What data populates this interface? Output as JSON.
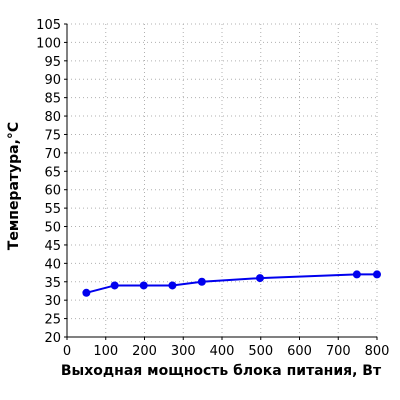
{
  "chart_data": {
    "type": "line",
    "title": "",
    "xlabel": "Выходная мощность блока питания, Вт",
    "ylabel": "Температура,°C",
    "xlim": [
      0,
      800
    ],
    "ylim": [
      20,
      105
    ],
    "x_ticks": [
      0,
      100,
      200,
      300,
      400,
      500,
      600,
      700,
      800
    ],
    "y_ticks": [
      20,
      25,
      30,
      35,
      40,
      45,
      50,
      55,
      60,
      65,
      70,
      75,
      80,
      85,
      90,
      95,
      100,
      105
    ],
    "grid": true,
    "legend": false,
    "series": [
      {
        "x": [
          50,
          123,
          198,
          272,
          348,
          498,
          748,
          800
        ],
        "y": [
          32,
          34,
          34,
          34,
          35,
          36,
          37,
          37
        ],
        "color": "#0000ee"
      }
    ]
  }
}
